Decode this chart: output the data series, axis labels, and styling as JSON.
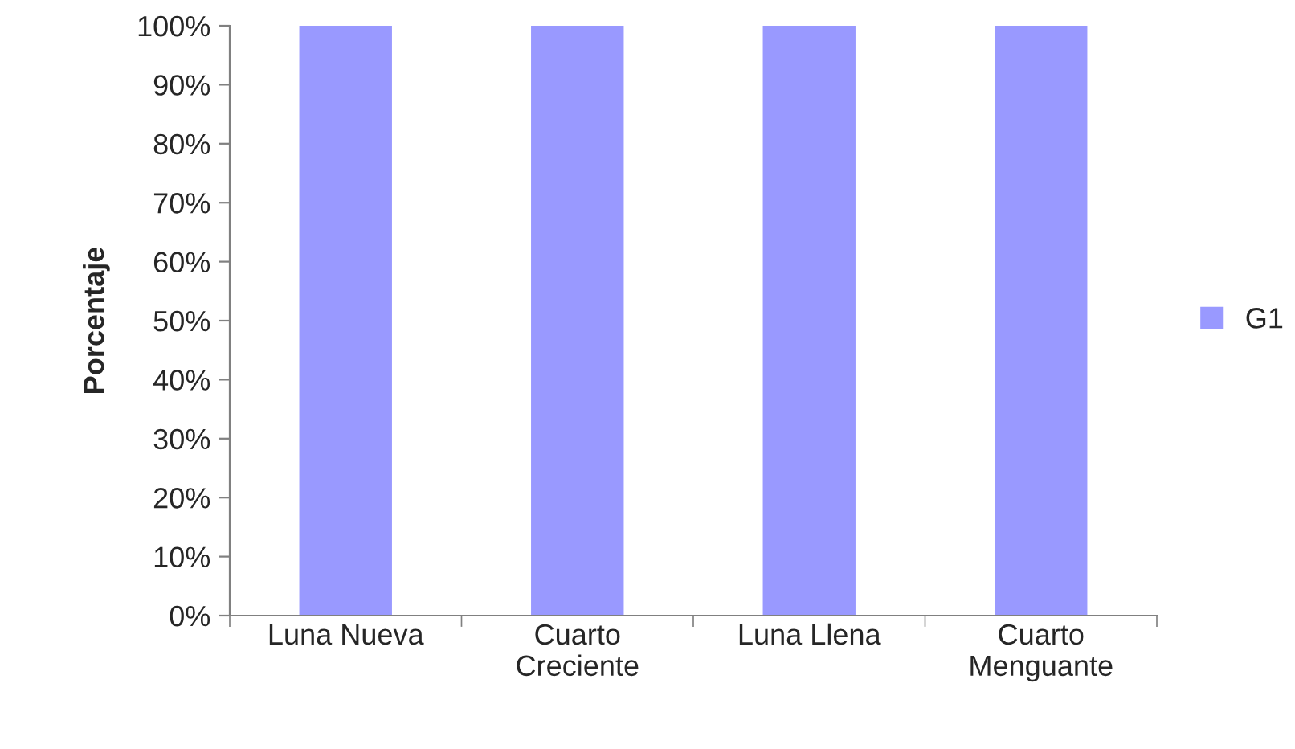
{
  "chart_data": {
    "type": "bar",
    "ylabel": "Porcentaje",
    "categories": [
      "Luna Nueva",
      "Cuarto\nCreciente",
      "Luna Llena",
      "Cuarto\nMenguante"
    ],
    "series": [
      {
        "name": "G1",
        "color": "#9999ff",
        "values": [
          100,
          100,
          100,
          100
        ]
      }
    ],
    "ylim": [
      0,
      100
    ],
    "yticks": [
      {
        "value": 0,
        "label": "0%"
      },
      {
        "value": 10,
        "label": "10%"
      },
      {
        "value": 20,
        "label": "20%"
      },
      {
        "value": 30,
        "label": "30%"
      },
      {
        "value": 40,
        "label": "40%"
      },
      {
        "value": 50,
        "label": "50%"
      },
      {
        "value": 60,
        "label": "60%"
      },
      {
        "value": 70,
        "label": "70%"
      },
      {
        "value": 80,
        "label": "80%"
      },
      {
        "value": 90,
        "label": "90%"
      },
      {
        "value": 100,
        "label": "100%"
      }
    ],
    "grid": false,
    "legend": "right"
  }
}
